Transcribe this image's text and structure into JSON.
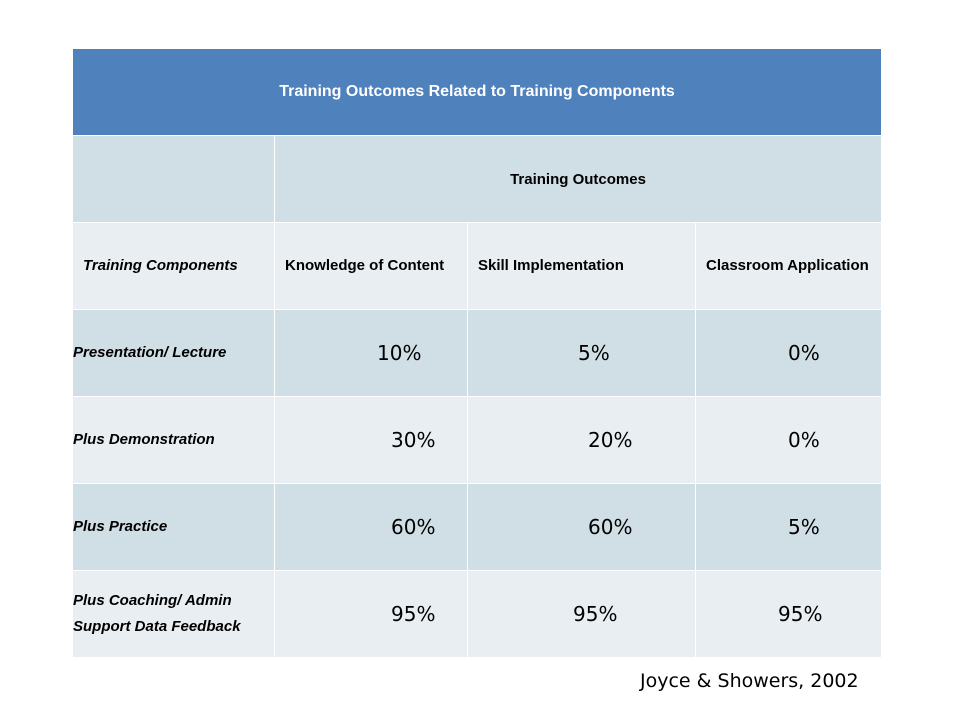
{
  "table": {
    "title": "Training Outcomes Related to Training Components",
    "outcomes_header": "Training Outcomes",
    "components_header": "Training Components",
    "columns": [
      "Knowledge of Content",
      "Skill Implementation",
      "Classroom Application"
    ],
    "rows": [
      {
        "label": "Presentation/ Lecture",
        "values": [
          "10%",
          "5%",
          "0%"
        ]
      },
      {
        "label": "Plus Demonstration",
        "values": [
          "30%",
          "20%",
          "0%"
        ]
      },
      {
        "label": "Plus Practice",
        "values": [
          "60%",
          "60%",
          "5%"
        ]
      },
      {
        "label": "Plus Coaching/ Admin Support Data Feedback",
        "values": [
          "95%",
          "95%",
          "95%"
        ]
      }
    ]
  },
  "citation": "Joyce & Showers, 2002"
}
